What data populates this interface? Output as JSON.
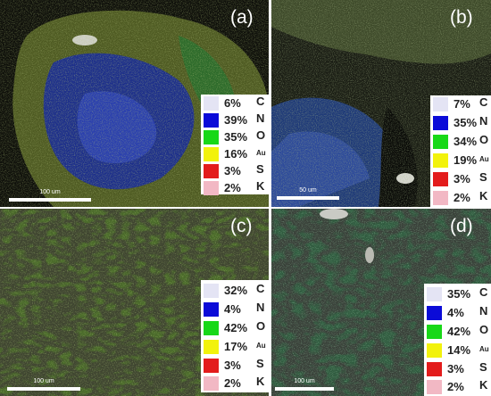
{
  "panels": [
    {
      "label": "(a)",
      "scale_bar": "100 um",
      "legend": [
        {
          "percent": "6%",
          "element": "C",
          "color": "#e4e4f4"
        },
        {
          "percent": "39%",
          "element": "N",
          "color": "#0b0bd8"
        },
        {
          "percent": "35%",
          "element": "O",
          "color": "#18d818"
        },
        {
          "percent": "16%",
          "element": "Au",
          "color": "#f2f20c"
        },
        {
          "percent": "3%",
          "element": "S",
          "color": "#e31c1c"
        },
        {
          "percent": "2%",
          "element": "K",
          "color": "#f2b8c4"
        }
      ]
    },
    {
      "label": "(b)",
      "scale_bar": "50 um",
      "legend": [
        {
          "percent": "7%",
          "element": "C",
          "color": "#e4e4f4"
        },
        {
          "percent": "35%",
          "element": "N",
          "color": "#0b0bd8"
        },
        {
          "percent": "34%",
          "element": "O",
          "color": "#18d818"
        },
        {
          "percent": "19%",
          "element": "Au",
          "color": "#f2f20c"
        },
        {
          "percent": "3%",
          "element": "S",
          "color": "#e31c1c"
        },
        {
          "percent": "2%",
          "element": "K",
          "color": "#f2b8c4"
        }
      ]
    },
    {
      "label": "(c)",
      "scale_bar": "100 um",
      "legend": [
        {
          "percent": "32%",
          "element": "C",
          "color": "#e4e4f4"
        },
        {
          "percent": "4%",
          "element": "N",
          "color": "#0b0bd8"
        },
        {
          "percent": "42%",
          "element": "O",
          "color": "#18d818"
        },
        {
          "percent": "17%",
          "element": "Au",
          "color": "#f2f20c"
        },
        {
          "percent": "3%",
          "element": "S",
          "color": "#e31c1c"
        },
        {
          "percent": "2%",
          "element": "K",
          "color": "#f2b8c4"
        }
      ]
    },
    {
      "label": "(d)",
      "scale_bar": "100 um",
      "legend": [
        {
          "percent": "35%",
          "element": "C",
          "color": "#e4e4f4"
        },
        {
          "percent": "4%",
          "element": "N",
          "color": "#0b0bd8"
        },
        {
          "percent": "42%",
          "element": "O",
          "color": "#18d818"
        },
        {
          "percent": "14%",
          "element": "Au",
          "color": "#f2f20c"
        },
        {
          "percent": "3%",
          "element": "S",
          "color": "#e31c1c"
        },
        {
          "percent": "2%",
          "element": "K",
          "color": "#f2b8c4"
        }
      ]
    }
  ]
}
